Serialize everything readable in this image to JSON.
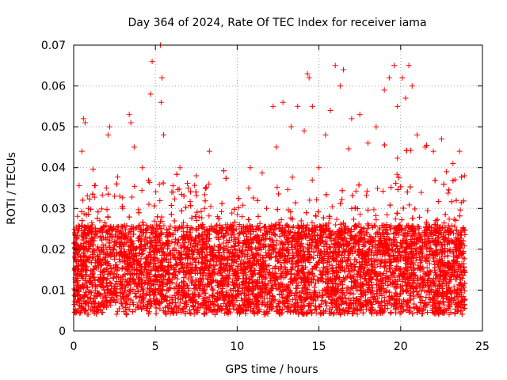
{
  "chart_data": {
    "type": "scatter",
    "title": "Day 364 of 2024, Rate Of TEC Index for receiver iama",
    "xlabel": "GPS time / hours",
    "ylabel": "ROTI / TECUs",
    "xlim": [
      0,
      25
    ],
    "ylim": [
      0,
      0.07
    ],
    "xticks": [
      0,
      5,
      10,
      15,
      20,
      25
    ],
    "xtick_labels": [
      "0",
      "5",
      "10",
      "15",
      "20",
      "25"
    ],
    "yticks": [
      0,
      0.01,
      0.02,
      0.03,
      0.04,
      0.05,
      0.06,
      0.07
    ],
    "ytick_labels": [
      "0",
      "0.01",
      "0.02",
      "0.03",
      "0.04",
      "0.05",
      "0.06",
      "0.07"
    ],
    "grid": true,
    "marker": "+",
    "color": "#ff0000",
    "series": [
      {
        "name": "ROTI",
        "points": [
          [
            0.1,
            0.012
          ],
          [
            0.3,
            0.02
          ],
          [
            0.5,
            0.044
          ],
          [
            0.6,
            0.052
          ],
          [
            0.7,
            0.051
          ],
          [
            0.9,
            0.03
          ],
          [
            1.2,
            0.015
          ],
          [
            1.6,
            0.027
          ],
          [
            2.0,
            0.035
          ],
          [
            2.1,
            0.048
          ],
          [
            2.2,
            0.05
          ],
          [
            2.5,
            0.033
          ],
          [
            3.0,
            0.03
          ],
          [
            3.4,
            0.053
          ],
          [
            3.5,
            0.051
          ],
          [
            3.7,
            0.045
          ],
          [
            4.2,
            0.04
          ],
          [
            4.6,
            0.031
          ],
          [
            4.7,
            0.058
          ],
          [
            4.8,
            0.066
          ],
          [
            5.3,
            0.07
          ],
          [
            5.4,
            0.062
          ],
          [
            5.35,
            0.056
          ],
          [
            5.5,
            0.048
          ],
          [
            6.0,
            0.034
          ],
          [
            6.5,
            0.04
          ],
          [
            7.0,
            0.035
          ],
          [
            7.5,
            0.038
          ],
          [
            8.0,
            0.03
          ],
          [
            8.3,
            0.044
          ],
          [
            8.8,
            0.028
          ],
          [
            9.3,
            0.026
          ],
          [
            9.8,
            0.025
          ],
          [
            10.3,
            0.028
          ],
          [
            10.8,
            0.04
          ],
          [
            11.3,
            0.025
          ],
          [
            11.8,
            0.03
          ],
          [
            12.2,
            0.055
          ],
          [
            12.4,
            0.045
          ],
          [
            12.8,
            0.056
          ],
          [
            13.3,
            0.05
          ],
          [
            13.7,
            0.055
          ],
          [
            14.1,
            0.049
          ],
          [
            14.3,
            0.063
          ],
          [
            14.4,
            0.062
          ],
          [
            14.6,
            0.055
          ],
          [
            15.0,
            0.04
          ],
          [
            15.4,
            0.048
          ],
          [
            15.7,
            0.054
          ],
          [
            16.0,
            0.065
          ],
          [
            16.3,
            0.06
          ],
          [
            16.5,
            0.064
          ],
          [
            17.0,
            0.052
          ],
          [
            17.5,
            0.053
          ],
          [
            18.0,
            0.046
          ],
          [
            18.5,
            0.05
          ],
          [
            19.0,
            0.059
          ],
          [
            19.3,
            0.062
          ],
          [
            19.6,
            0.065
          ],
          [
            19.8,
            0.055
          ],
          [
            20.1,
            0.062
          ],
          [
            20.3,
            0.057
          ],
          [
            20.5,
            0.065
          ],
          [
            20.7,
            0.06
          ],
          [
            21.0,
            0.048
          ],
          [
            21.5,
            0.045
          ],
          [
            22.0,
            0.044
          ],
          [
            22.5,
            0.047
          ],
          [
            22.8,
            0.039
          ],
          [
            23.2,
            0.041
          ],
          [
            23.6,
            0.044
          ],
          [
            23.9,
            0.038
          ]
        ]
      }
    ],
    "dense_points_approx": "thousands of points, most between 0.004 and 0.03 TECUs across 0-24 hours"
  }
}
